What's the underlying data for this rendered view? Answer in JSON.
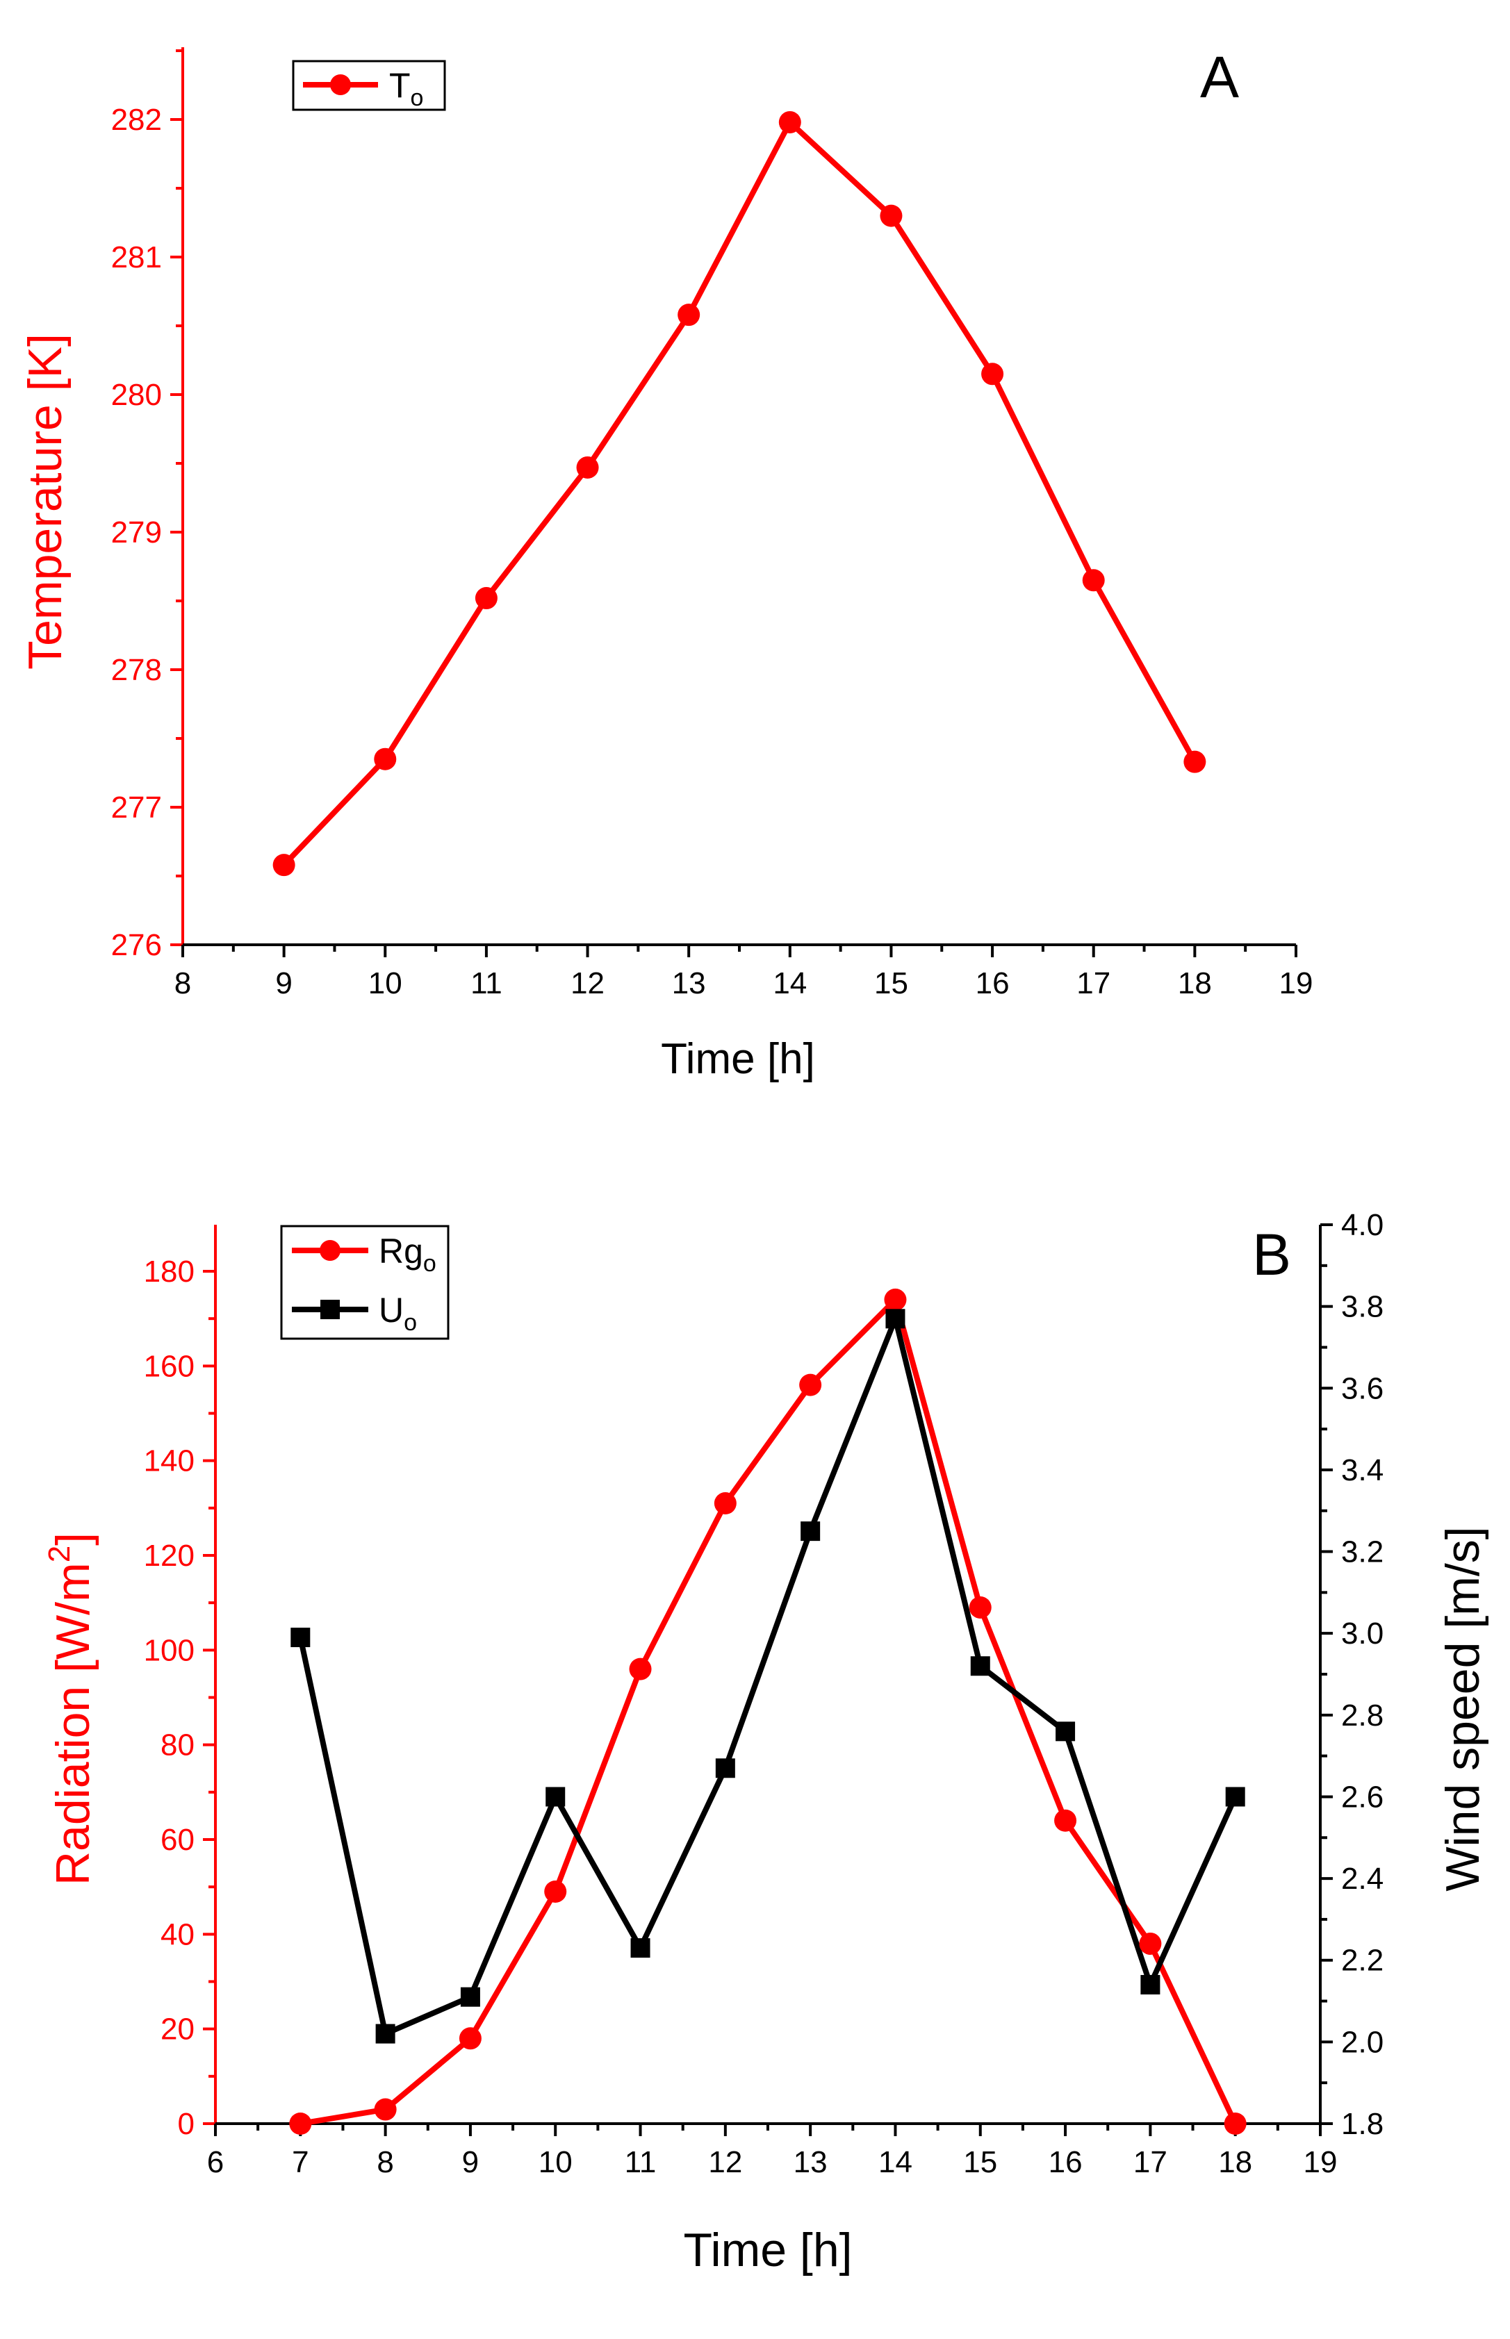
{
  "colors": {
    "red": "#ff0000",
    "black": "#000000"
  },
  "chart_data": [
    {
      "type": "line",
      "panel_label": "A",
      "xlabel": "Time [h]",
      "ylabel": "Temperature [K]",
      "xlim": [
        8,
        19
      ],
      "ylim": [
        276,
        282.5
      ],
      "x_ticks": [
        "8",
        "9",
        "10",
        "11",
        "12",
        "13",
        "14",
        "15",
        "16",
        "17",
        "18",
        "19"
      ],
      "y_ticks": [
        "276",
        "277",
        "278",
        "279",
        "280",
        "281",
        "282"
      ],
      "legend": {
        "position": "top-left",
        "entries": [
          {
            "name": "T",
            "sub": "o",
            "marker": "circle",
            "color": "#ff0000"
          }
        ]
      },
      "series": [
        {
          "name": "To",
          "marker": "circle",
          "color": "#ff0000",
          "x": [
            9,
            10,
            11,
            12,
            13,
            14,
            15,
            16,
            17,
            18
          ],
          "y": [
            276.58,
            277.35,
            278.52,
            279.47,
            280.58,
            281.98,
            281.3,
            280.15,
            278.65,
            277.33
          ]
        }
      ]
    },
    {
      "type": "line",
      "panel_label": "B",
      "xlabel": "Time [h]",
      "ylabel_left": "Radiation [W/m",
      "ylabel_left_sup": "2",
      "ylabel_left_end": "]",
      "ylabel_right": "Wind speed [m/s]",
      "xlim": [
        6,
        19
      ],
      "ylim_left": [
        0,
        190
      ],
      "ylim_right": [
        1.8,
        4.0
      ],
      "x_ticks": [
        "6",
        "7",
        "8",
        "9",
        "10",
        "11",
        "12",
        "13",
        "14",
        "15",
        "16",
        "17",
        "18",
        "19"
      ],
      "y_ticks_left": [
        "0",
        "20",
        "40",
        "60",
        "80",
        "100",
        "120",
        "140",
        "160",
        "180"
      ],
      "y_ticks_right": [
        "1.8",
        "2.0",
        "2.2",
        "2.4",
        "2.6",
        "2.8",
        "3.0",
        "3.2",
        "3.4",
        "3.6",
        "3.8",
        "4.0"
      ],
      "legend": {
        "position": "top-left",
        "entries": [
          {
            "name": "Rg",
            "sub": "o",
            "marker": "circle",
            "color": "#ff0000"
          },
          {
            "name": "U",
            "sub": "o",
            "marker": "square",
            "color": "#000000"
          }
        ]
      },
      "series": [
        {
          "name": "Rgo",
          "axis": "left",
          "marker": "circle",
          "color": "#ff0000",
          "x": [
            7,
            8,
            9,
            10,
            11,
            12,
            13,
            14,
            15,
            16,
            17,
            18
          ],
          "y": [
            0,
            3,
            18,
            49,
            96,
            131,
            156,
            174,
            109,
            64,
            38,
            0
          ]
        },
        {
          "name": "Uo",
          "axis": "right",
          "marker": "square",
          "color": "#000000",
          "x": [
            7,
            8,
            9,
            10,
            11,
            12,
            13,
            14,
            15,
            16,
            17,
            18
          ],
          "y": [
            2.99,
            2.02,
            2.11,
            2.6,
            2.23,
            2.67,
            3.25,
            3.77,
            2.92,
            2.76,
            2.14,
            2.6
          ]
        }
      ]
    }
  ]
}
